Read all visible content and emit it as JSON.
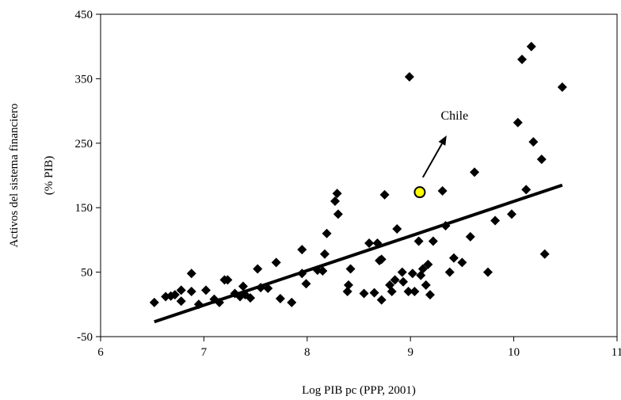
{
  "chart_data": {
    "type": "scatter",
    "xlabel": "Log PIB pc (PPP, 2001)",
    "ylabel_line1": "Activos del sistema financiero",
    "ylabel_line2": "(% PIB)",
    "xlim": [
      6,
      11
    ],
    "ylim": [
      -50,
      450
    ],
    "x_ticks": [
      6,
      7,
      8,
      9,
      10,
      11
    ],
    "y_ticks": [
      -50,
      50,
      150,
      250,
      350,
      450
    ],
    "grid": false,
    "legend": "none",
    "marker_color": "#000000",
    "highlight_color": "#ffff00",
    "points": [
      {
        "x": 6.52,
        "y": 3
      },
      {
        "x": 6.63,
        "y": 12
      },
      {
        "x": 6.68,
        "y": 13
      },
      {
        "x": 6.72,
        "y": 15
      },
      {
        "x": 6.78,
        "y": 5
      },
      {
        "x": 6.78,
        "y": 22
      },
      {
        "x": 6.88,
        "y": 20
      },
      {
        "x": 6.88,
        "y": 48
      },
      {
        "x": 6.95,
        "y": 0
      },
      {
        "x": 7.02,
        "y": 22
      },
      {
        "x": 7.1,
        "y": 8
      },
      {
        "x": 7.15,
        "y": 3
      },
      {
        "x": 7.2,
        "y": 38
      },
      {
        "x": 7.23,
        "y": 38
      },
      {
        "x": 7.3,
        "y": 17
      },
      {
        "x": 7.35,
        "y": 12
      },
      {
        "x": 7.4,
        "y": 15
      },
      {
        "x": 7.38,
        "y": 28
      },
      {
        "x": 7.45,
        "y": 10
      },
      {
        "x": 7.52,
        "y": 55
      },
      {
        "x": 7.55,
        "y": 26
      },
      {
        "x": 7.62,
        "y": 25
      },
      {
        "x": 7.7,
        "y": 65
      },
      {
        "x": 7.74,
        "y": 9
      },
      {
        "x": 7.85,
        "y": 3
      },
      {
        "x": 7.95,
        "y": 48
      },
      {
        "x": 7.95,
        "y": 85
      },
      {
        "x": 7.99,
        "y": 32
      },
      {
        "x": 8.1,
        "y": 53
      },
      {
        "x": 8.15,
        "y": 52
      },
      {
        "x": 8.17,
        "y": 78
      },
      {
        "x": 8.19,
        "y": 110
      },
      {
        "x": 8.27,
        "y": 160
      },
      {
        "x": 8.29,
        "y": 172
      },
      {
        "x": 8.3,
        "y": 140
      },
      {
        "x": 8.39,
        "y": 20
      },
      {
        "x": 8.4,
        "y": 30
      },
      {
        "x": 8.42,
        "y": 55
      },
      {
        "x": 8.55,
        "y": 17
      },
      {
        "x": 8.6,
        "y": 95
      },
      {
        "x": 8.65,
        "y": 18
      },
      {
        "x": 8.68,
        "y": 95
      },
      {
        "x": 8.7,
        "y": 68
      },
      {
        "x": 8.72,
        "y": 70
      },
      {
        "x": 8.72,
        "y": 7
      },
      {
        "x": 8.75,
        "y": 170
      },
      {
        "x": 8.8,
        "y": 30
      },
      {
        "x": 8.82,
        "y": 20
      },
      {
        "x": 8.85,
        "y": 38
      },
      {
        "x": 8.87,
        "y": 117
      },
      {
        "x": 8.92,
        "y": 50
      },
      {
        "x": 8.93,
        "y": 35
      },
      {
        "x": 8.98,
        "y": 20
      },
      {
        "x": 8.99,
        "y": 353
      },
      {
        "x": 9.02,
        "y": 48
      },
      {
        "x": 9.04,
        "y": 20
      },
      {
        "x": 9.08,
        "y": 98
      },
      {
        "x": 9.1,
        "y": 45
      },
      {
        "x": 9.12,
        "y": 55
      },
      {
        "x": 9.15,
        "y": 30
      },
      {
        "x": 9.17,
        "y": 62
      },
      {
        "x": 9.19,
        "y": 15
      },
      {
        "x": 9.22,
        "y": 98
      },
      {
        "x": 9.31,
        "y": 176
      },
      {
        "x": 9.34,
        "y": 122
      },
      {
        "x": 9.38,
        "y": 50
      },
      {
        "x": 9.42,
        "y": 72
      },
      {
        "x": 9.5,
        "y": 65
      },
      {
        "x": 9.58,
        "y": 105
      },
      {
        "x": 9.62,
        "y": 205
      },
      {
        "x": 9.75,
        "y": 50
      },
      {
        "x": 9.82,
        "y": 130
      },
      {
        "x": 9.98,
        "y": 140
      },
      {
        "x": 10.04,
        "y": 282
      },
      {
        "x": 10.08,
        "y": 380
      },
      {
        "x": 10.12,
        "y": 178
      },
      {
        "x": 10.17,
        "y": 400
      },
      {
        "x": 10.19,
        "y": 252
      },
      {
        "x": 10.27,
        "y": 225
      },
      {
        "x": 10.3,
        "y": 78
      },
      {
        "x": 10.47,
        "y": 337
      }
    ],
    "highlight_point": {
      "label": "Chile",
      "x": 9.09,
      "y": 174
    },
    "trendline": {
      "x": [
        6.52,
        10.47
      ],
      "y": [
        -27,
        185
      ]
    },
    "annotation": {
      "text": "Chile",
      "arrow_from": [
        9.12,
        197
      ],
      "arrow_to": [
        9.35,
        262
      ]
    }
  }
}
